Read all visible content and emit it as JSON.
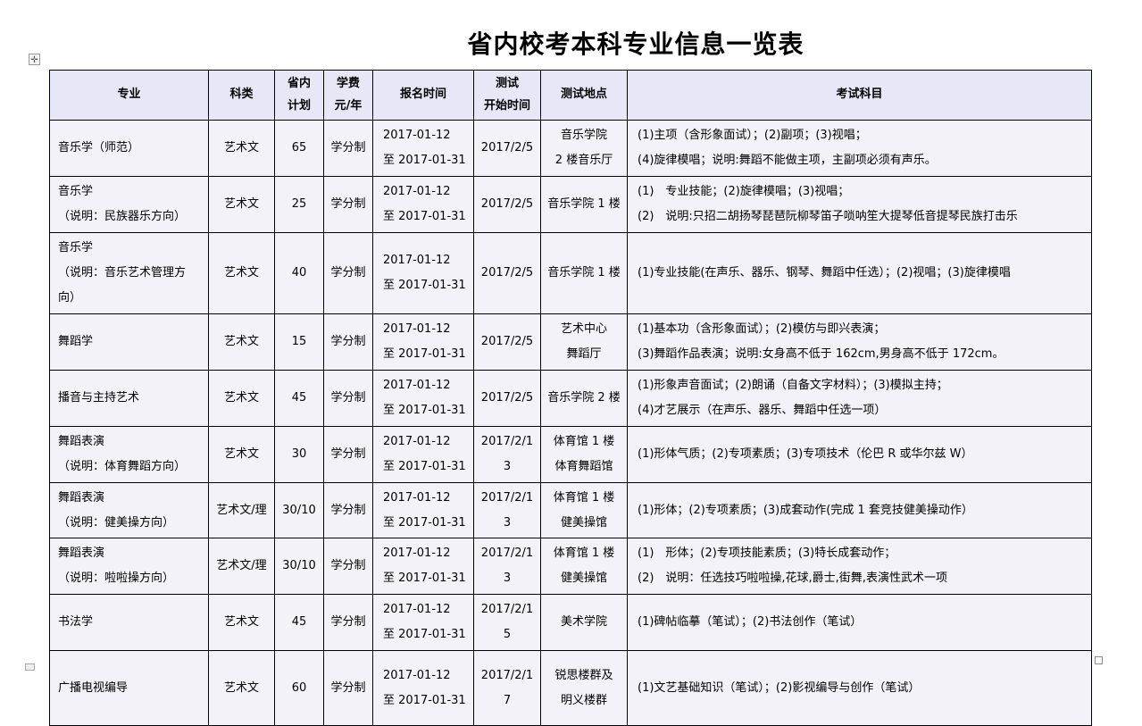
{
  "title": "省内校考本科专业信息一览表",
  "icons": {
    "table_move_handle_glyph": "✛"
  },
  "colors": {
    "header_bg": "#e7e7f7",
    "row_bg": "#f2f2f8",
    "border": "#000000"
  },
  "table": {
    "headers": [
      "专业",
      "科类",
      "省内\n计划",
      "学费\n元/年",
      "报名时间",
      "测试\n开始时间",
      "测试地点",
      "考试科目"
    ],
    "rows": [
      {
        "major": "音乐学（师范）",
        "category": "艺术文",
        "plan": "65",
        "tuition": "学分制",
        "reg_time": "2017-01-12\n至 2017-01-31",
        "test_date": "2017/2/5",
        "location": "音乐学院\n2 楼音乐厅",
        "subjects": "(1)主项（含形象面试）；(2)副项；(3)视唱；\n(4)旋律模唱；说明:舞蹈不能做主项，主副项必须有声乐。"
      },
      {
        "major": "音乐学\n（说明：民族器乐方向）",
        "category": "艺术文",
        "plan": "25",
        "tuition": "学分制",
        "reg_time": "2017-01-12\n至 2017-01-31",
        "test_date": "2017/2/5",
        "location": "音乐学院 1 楼",
        "subjects": "(1)　专业技能；(2)旋律模唱；(3)视唱；\n(2)　说明:只招二胡扬琴琵琶阮柳琴笛子唢呐笙大提琴低音提琴民族打击乐"
      },
      {
        "major": "音乐学\n（说明：音乐艺术管理方向）",
        "category": "艺术文",
        "plan": "40",
        "tuition": "学分制",
        "reg_time": "2017-01-12\n至 2017-01-31",
        "test_date": "2017/2/5",
        "location": "音乐学院 1 楼",
        "subjects": "(1)专业技能(在声乐、器乐、钢琴、舞蹈中任选）；(2)视唱；(3)旋律模唱"
      },
      {
        "major": "舞蹈学",
        "category": "艺术文",
        "plan": "15",
        "tuition": "学分制",
        "reg_time": "2017-01-12\n至 2017-01-31",
        "test_date": "2017/2/5",
        "location": "艺术中心\n舞蹈厅",
        "subjects": "(1)基本功（含形象面试）；(2)模仿与即兴表演；\n(3)舞蹈作品表演；说明:女身高不低于 162cm,男身高不低于 172cm。"
      },
      {
        "major": "播音与主持艺术",
        "category": "艺术文",
        "plan": "45",
        "tuition": "学分制",
        "reg_time": "2017-01-12\n至 2017-01-31",
        "test_date": "2017/2/5",
        "location": "音乐学院 2 楼",
        "subjects": "(1)形象声音面试；(2)朗诵（自备文字材料）；(3)模拟主持；\n(4)才艺展示（在声乐、器乐、舞蹈中任选一项）"
      },
      {
        "major": "舞蹈表演\n（说明：体育舞蹈方向）",
        "category": "艺术文",
        "plan": "30",
        "tuition": "学分制",
        "reg_time": "2017-01-12\n至 2017-01-31",
        "test_date": "2017/2/13",
        "location": "体育馆 1 楼\n体育舞蹈馆",
        "subjects": "(1)形体气质；(2)专项素质；(3)专项技术（伦巴 R 或华尔兹 W）"
      },
      {
        "major": "舞蹈表演\n（说明：健美操方向）",
        "category": "艺术文/理",
        "plan": "30/10",
        "tuition": "学分制",
        "reg_time": "2017-01-12\n至 2017-01-31",
        "test_date": "2017/2/13",
        "location": "体育馆 1 楼\n健美操馆",
        "subjects": "(1)形体；(2)专项素质；(3)成套动作(完成 1 套竞技健美操动作）"
      },
      {
        "major": "舞蹈表演\n（说明：啦啦操方向）",
        "category": "艺术文/理",
        "plan": "30/10",
        "tuition": "学分制",
        "reg_time": "2017-01-12\n至 2017-01-31",
        "test_date": "2017/2/13",
        "location": "体育馆 1 楼\n健美操馆",
        "subjects": "(1)　形体；(2)专项技能素质；(3)特长成套动作；\n(2)　说明：任选技巧啦啦操,花球,爵士,街舞,表演性武术一项"
      },
      {
        "major": "书法学",
        "category": "艺术文",
        "plan": "45",
        "tuition": "学分制",
        "reg_time": "2017-01-12\n至 2017-01-31",
        "test_date": "2017/2/15",
        "location": "美术学院",
        "subjects": "(1)碑帖临摹（笔试）；(2)书法创作（笔试）"
      },
      {
        "major": "广播电视编导",
        "category": "艺术文",
        "plan": "60",
        "tuition": "学分制",
        "reg_time": "2017-01-12\n至 2017-01-31",
        "test_date": "2017/2/17",
        "location": "锐思楼群及\n明义楼群",
        "subjects": "(1)文艺基础知识（笔试）；(2)影视编导与创作（笔试）"
      }
    ]
  }
}
